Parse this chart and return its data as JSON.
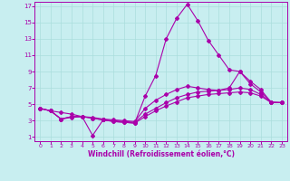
{
  "xlabel": "Windchill (Refroidissement éolien,°C)",
  "bg_color": "#c8eef0",
  "grid_color": "#aadddd",
  "line_color": "#aa00aa",
  "xlim": [
    -0.5,
    23.5
  ],
  "ylim": [
    0.5,
    17.5
  ],
  "xticks": [
    0,
    1,
    2,
    3,
    4,
    5,
    6,
    7,
    8,
    9,
    10,
    11,
    12,
    13,
    14,
    15,
    16,
    17,
    18,
    19,
    20,
    21,
    22,
    23
  ],
  "yticks": [
    1,
    3,
    5,
    7,
    9,
    11,
    13,
    15,
    17
  ],
  "series": [
    {
      "x": [
        0,
        1,
        2,
        3,
        4,
        5,
        6,
        7,
        8,
        9,
        10,
        11,
        12,
        13,
        14,
        15,
        16,
        17,
        18,
        19,
        20,
        21,
        22,
        23
      ],
      "y": [
        4.5,
        4.2,
        4.0,
        3.8,
        3.5,
        1.2,
        3.1,
        2.9,
        2.8,
        2.7,
        6.0,
        8.5,
        13.0,
        15.5,
        17.2,
        15.2,
        12.8,
        11.0,
        9.2,
        9.0,
        7.8,
        6.8,
        5.2,
        5.2
      ]
    },
    {
      "x": [
        0,
        1,
        2,
        3,
        4,
        5,
        6,
        7,
        8,
        9,
        10,
        11,
        12,
        13,
        14,
        15,
        16,
        17,
        18,
        19,
        20,
        21,
        22,
        23
      ],
      "y": [
        4.5,
        4.2,
        3.2,
        3.5,
        3.5,
        3.4,
        3.2,
        3.1,
        3.0,
        2.9,
        4.5,
        5.5,
        6.2,
        6.8,
        7.2,
        7.0,
        6.8,
        6.7,
        7.0,
        9.0,
        7.5,
        6.5,
        5.3,
        5.2
      ]
    },
    {
      "x": [
        0,
        1,
        2,
        3,
        4,
        5,
        6,
        7,
        8,
        9,
        10,
        11,
        12,
        13,
        14,
        15,
        16,
        17,
        18,
        19,
        20,
        21,
        22,
        23
      ],
      "y": [
        4.5,
        4.2,
        3.2,
        3.5,
        3.5,
        3.3,
        3.1,
        3.0,
        2.9,
        2.8,
        3.8,
        4.5,
        5.2,
        5.8,
        6.2,
        6.5,
        6.6,
        6.7,
        6.8,
        7.0,
        6.8,
        6.2,
        5.2,
        5.2
      ]
    },
    {
      "x": [
        0,
        1,
        2,
        3,
        4,
        5,
        6,
        7,
        8,
        9,
        10,
        11,
        12,
        13,
        14,
        15,
        16,
        17,
        18,
        19,
        20,
        21,
        22,
        23
      ],
      "y": [
        4.5,
        4.2,
        3.2,
        3.4,
        3.5,
        3.3,
        3.1,
        2.9,
        2.8,
        2.7,
        3.5,
        4.2,
        4.8,
        5.3,
        5.8,
        6.0,
        6.2,
        6.3,
        6.4,
        6.5,
        6.4,
        6.0,
        5.2,
        5.2
      ]
    }
  ]
}
